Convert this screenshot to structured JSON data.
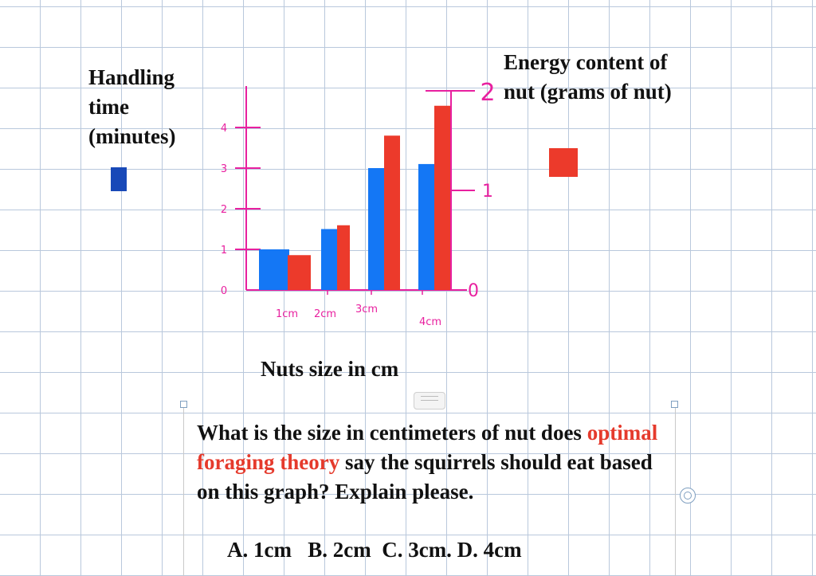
{
  "chart_data": {
    "type": "bar",
    "categories": [
      "1cm",
      "2cm",
      "3cm",
      "4cm"
    ],
    "series": [
      {
        "values": [
          1,
          1.5,
          3,
          3.1
        ]
      },
      {
        "values": [
          0.35,
          0.65,
          1.55,
          1.85
        ]
      }
    ],
    "left_axis": {
      "ticks": [
        "0",
        "1",
        "2",
        "3",
        "4"
      ],
      "range": [
        0,
        4
      ]
    },
    "right_axis": {
      "ticks": [
        "0",
        "1",
        "2"
      ],
      "range": [
        0,
        2
      ]
    },
    "left_label": "Handling time (minutes)",
    "right_label": "Energy content of nut (grams of nut)",
    "xlabel": "Nuts size in cm",
    "colors": {
      "handling": "#1477f5",
      "energy": "#ec3a2b",
      "axis": "#e8209f"
    }
  },
  "legend": {
    "left_label_lines": [
      "Handling",
      "time",
      "(minutes)"
    ],
    "right_label_lines": [
      "Energy content of",
      "nut (grams of nut)"
    ],
    "left_swatch_color": "#1849b8",
    "right_swatch_color": "#ec3a2b"
  },
  "question": {
    "part1": "What is the size in centimeters of nut does",
    "highlight": "optimal foraging theory",
    "part2": " say the squirrels should eat based on this graph? Explain please.",
    "answers": "A. 1cm   B. 2cm  C. 3cm. D. 4cm"
  }
}
